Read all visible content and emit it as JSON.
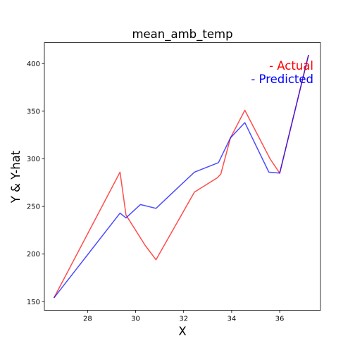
{
  "chart_data": {
    "type": "line",
    "title": "mean_amb_temp",
    "xlabel": "X",
    "ylabel": "Y & Y-hat",
    "xlim": [
      26.2,
      37.7
    ],
    "ylim": [
      141,
      422
    ],
    "xticks": [
      28,
      30,
      32,
      34,
      36
    ],
    "yticks": [
      150,
      200,
      250,
      300,
      350,
      400
    ],
    "grid": false,
    "legend_position": "top-right",
    "series": [
      {
        "name": "- Actual",
        "color": "#ff0000",
        "x": [
          26.6,
          29.35,
          29.6,
          30.4,
          30.85,
          32.45,
          33.4,
          33.55,
          33.95,
          34.55,
          35.6,
          36.0,
          37.2
        ],
        "y": [
          154,
          286,
          241,
          209,
          194,
          265,
          280,
          284,
          322,
          351,
          300,
          285,
          409
        ]
      },
      {
        "name": "- Predicted",
        "color": "#0000ff",
        "x": [
          26.6,
          29.35,
          29.6,
          30.2,
          30.85,
          32.45,
          33.45,
          33.95,
          34.55,
          35.55,
          36.0,
          37.2
        ],
        "y": [
          154,
          243,
          238,
          252,
          248,
          286,
          296,
          322,
          338,
          286,
          285,
          409
        ]
      }
    ]
  }
}
